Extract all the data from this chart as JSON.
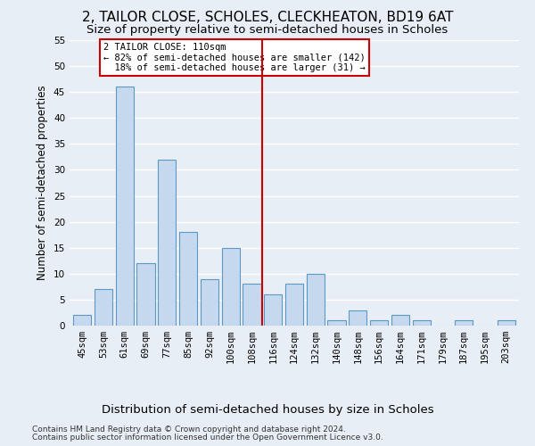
{
  "title": "2, TAILOR CLOSE, SCHOLES, CLECKHEATON, BD19 6AT",
  "subtitle": "Size of property relative to semi-detached houses in Scholes",
  "xlabel_bottom": "Distribution of semi-detached houses by size in Scholes",
  "ylabel": "Number of semi-detached properties",
  "footer_line1": "Contains HM Land Registry data © Crown copyright and database right 2024.",
  "footer_line2": "Contains public sector information licensed under the Open Government Licence v3.0.",
  "bar_labels": [
    "45sqm",
    "53sqm",
    "61sqm",
    "69sqm",
    "77sqm",
    "85sqm",
    "92sqm",
    "100sqm",
    "108sqm",
    "116sqm",
    "124sqm",
    "132sqm",
    "140sqm",
    "148sqm",
    "156sqm",
    "164sqm",
    "171sqm",
    "179sqm",
    "187sqm",
    "195sqm",
    "203sqm"
  ],
  "bar_values": [
    2,
    7,
    46,
    12,
    32,
    18,
    9,
    15,
    8,
    6,
    8,
    10,
    1,
    3,
    1,
    2,
    1,
    0,
    1,
    0,
    1
  ],
  "bar_color": "#c5d8ed",
  "bar_edge_color": "#5a9ac8",
  "vline_x_index": 8,
  "vline_color": "#cc0000",
  "annotation_text": "2 TAILOR CLOSE: 110sqm\n← 82% of semi-detached houses are smaller (142)\n  18% of semi-detached houses are larger (31) →",
  "annotation_box_color": "#ffffff",
  "annotation_box_edge_color": "#cc0000",
  "ylim": [
    0,
    55
  ],
  "yticks": [
    0,
    5,
    10,
    15,
    20,
    25,
    30,
    35,
    40,
    45,
    50,
    55
  ],
  "bg_color": "#e8eef5",
  "plot_bg_color": "#e8eef5",
  "grid_color": "#ffffff",
  "title_fontsize": 11,
  "subtitle_fontsize": 9.5,
  "tick_fontsize": 7.5,
  "ylabel_fontsize": 8.5,
  "xlabel_bottom_fontsize": 9.5,
  "footer_fontsize": 6.5
}
